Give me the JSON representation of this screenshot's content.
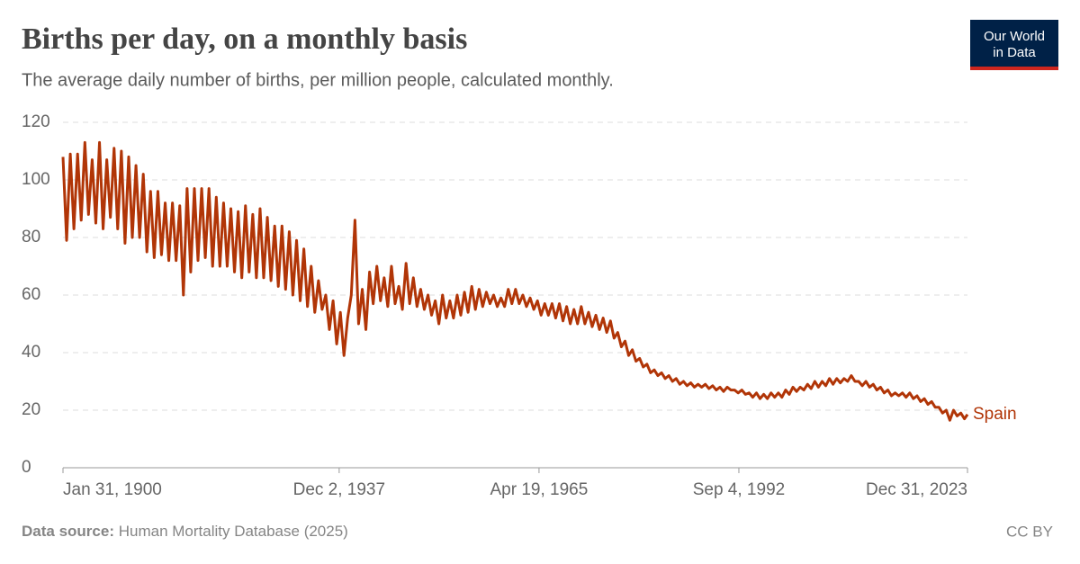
{
  "chart_data": {
    "type": "line",
    "title": "Births per day, on a monthly basis",
    "subtitle": "The average daily number of births, per million people, calculated monthly.",
    "x": [
      "1900-01-31",
      "1900-07-31",
      "1901-01-31",
      "1901-07-31",
      "1902-01-31",
      "1902-07-31",
      "1903-01-31",
      "1903-07-31",
      "1904-01-31",
      "1904-07-31",
      "1905-01-31",
      "1905-07-31",
      "1906-01-31",
      "1906-07-31",
      "1907-01-31",
      "1907-07-31",
      "1908-01-31",
      "1908-07-31",
      "1909-01-31",
      "1909-07-31",
      "1910-01-31",
      "1910-07-31",
      "1911-01-31",
      "1911-07-31",
      "1912-01-31",
      "1912-07-31",
      "1913-01-31",
      "1913-07-31",
      "1914-01-31",
      "1914-07-31",
      "1915-01-31",
      "1915-07-31",
      "1916-01-31",
      "1916-07-31",
      "1917-01-31",
      "1917-07-31",
      "1918-01-31",
      "1918-07-31",
      "1919-01-31",
      "1919-07-31",
      "1920-01-31",
      "1920-07-31",
      "1921-01-31",
      "1921-07-31",
      "1922-01-31",
      "1922-07-31",
      "1923-01-31",
      "1923-07-31",
      "1924-01-31",
      "1924-07-31",
      "1925-01-31",
      "1925-07-31",
      "1926-01-31",
      "1926-07-31",
      "1927-01-31",
      "1927-07-31",
      "1928-01-31",
      "1928-07-31",
      "1929-01-31",
      "1929-07-31",
      "1930-01-31",
      "1930-07-31",
      "1931-01-31",
      "1931-07-31",
      "1932-01-31",
      "1932-07-31",
      "1933-01-31",
      "1933-07-31",
      "1934-01-31",
      "1934-07-31",
      "1935-01-31",
      "1935-07-31",
      "1936-01-31",
      "1936-07-31",
      "1937-01-31",
      "1937-07-31",
      "1938-01-31",
      "1938-07-31",
      "1939-01-31",
      "1939-07-31",
      "1940-01-31",
      "1940-07-31",
      "1941-01-31",
      "1941-07-31",
      "1942-01-31",
      "1942-07-31",
      "1943-01-31",
      "1943-07-31",
      "1944-01-31",
      "1944-07-31",
      "1945-01-31",
      "1945-07-31",
      "1946-01-31",
      "1946-07-31",
      "1947-01-31",
      "1947-07-31",
      "1948-01-31",
      "1948-07-31",
      "1949-01-31",
      "1949-07-31",
      "1950-01-31",
      "1950-07-31",
      "1951-01-31",
      "1951-07-31",
      "1952-01-31",
      "1952-07-31",
      "1953-01-31",
      "1953-07-31",
      "1954-01-31",
      "1954-07-31",
      "1955-01-31",
      "1955-07-31",
      "1956-01-31",
      "1956-07-31",
      "1957-01-31",
      "1957-07-31",
      "1958-01-31",
      "1958-07-31",
      "1959-01-31",
      "1959-07-31",
      "1960-01-31",
      "1960-07-31",
      "1961-01-31",
      "1961-07-31",
      "1962-01-31",
      "1962-07-31",
      "1963-01-31",
      "1963-07-31",
      "1964-01-31",
      "1964-07-31",
      "1965-01-31",
      "1965-07-31",
      "1966-01-31",
      "1966-07-31",
      "1967-01-31",
      "1967-07-31",
      "1968-01-31",
      "1968-07-31",
      "1969-01-31",
      "1969-07-31",
      "1970-01-31",
      "1970-07-31",
      "1971-01-31",
      "1971-07-31",
      "1972-01-31",
      "1972-07-31",
      "1973-01-31",
      "1973-07-31",
      "1974-01-31",
      "1974-07-31",
      "1975-01-31",
      "1975-07-31",
      "1976-01-31",
      "1976-07-31",
      "1977-01-31",
      "1977-07-31",
      "1978-01-31",
      "1978-07-31",
      "1979-01-31",
      "1979-07-31",
      "1980-01-31",
      "1980-07-31",
      "1981-01-31",
      "1981-07-31",
      "1982-01-31",
      "1982-07-31",
      "1983-01-31",
      "1983-07-31",
      "1984-01-31",
      "1984-07-31",
      "1985-01-31",
      "1985-07-31",
      "1986-01-31",
      "1986-07-31",
      "1987-01-31",
      "1987-07-31",
      "1988-01-31",
      "1988-07-31",
      "1989-01-31",
      "1989-07-31",
      "1990-01-31",
      "1990-07-31",
      "1991-01-31",
      "1991-07-31",
      "1992-01-31",
      "1992-07-31",
      "1993-01-31",
      "1993-07-31",
      "1994-01-31",
      "1994-07-31",
      "1995-01-31",
      "1995-07-31",
      "1996-01-31",
      "1996-07-31",
      "1997-01-31",
      "1997-07-31",
      "1998-01-31",
      "1998-07-31",
      "1999-01-31",
      "1999-07-31",
      "2000-01-31",
      "2000-07-31",
      "2001-01-31",
      "2001-07-31",
      "2002-01-31",
      "2002-07-31",
      "2003-01-31",
      "2003-07-31",
      "2004-01-31",
      "2004-07-31",
      "2005-01-31",
      "2005-07-31",
      "2006-01-31",
      "2006-07-31",
      "2007-01-31",
      "2007-07-31",
      "2008-01-31",
      "2008-07-31",
      "2009-01-31",
      "2009-07-31",
      "2010-01-31",
      "2010-07-31",
      "2011-01-31",
      "2011-07-31",
      "2012-01-31",
      "2012-07-31",
      "2013-01-31",
      "2013-07-31",
      "2014-01-31",
      "2014-07-31",
      "2015-01-31",
      "2015-07-31",
      "2016-01-31",
      "2016-07-31",
      "2017-01-31",
      "2017-07-31",
      "2018-01-31",
      "2018-07-31",
      "2019-01-31",
      "2019-07-31",
      "2020-01-31",
      "2020-07-31",
      "2021-01-31",
      "2021-07-31",
      "2022-01-31",
      "2022-07-31",
      "2023-01-31",
      "2023-07-31",
      "2023-12-31"
    ],
    "series": [
      {
        "name": "Spain",
        "color": "#b13507",
        "values": [
          108,
          79,
          109,
          83,
          109,
          86,
          113,
          88,
          107,
          85,
          113,
          83,
          107,
          87,
          111,
          83,
          110,
          78,
          108,
          80,
          105,
          80,
          102,
          75,
          96,
          73,
          96,
          74,
          92,
          72,
          92,
          72,
          91,
          60,
          97,
          68,
          97,
          72,
          97,
          73,
          97,
          70,
          94,
          70,
          92,
          70,
          90,
          68,
          89,
          66,
          91,
          68,
          88,
          66,
          90,
          66,
          87,
          65,
          84,
          63,
          84,
          62,
          82,
          60,
          79,
          58,
          76,
          56,
          70,
          54,
          65,
          55,
          60,
          48,
          58,
          43,
          54,
          39,
          52,
          60,
          86,
          50,
          62,
          48,
          68,
          57,
          70,
          58,
          66,
          56,
          70,
          57,
          63,
          55,
          71,
          57,
          66,
          56,
          62,
          55,
          60,
          53,
          58,
          50,
          60,
          52,
          58,
          52,
          60,
          53,
          61,
          54,
          63,
          55,
          62,
          56,
          61,
          57,
          60,
          56,
          59,
          56,
          62,
          57,
          62,
          57,
          60,
          56,
          59,
          55,
          58,
          53,
          57,
          53,
          57,
          52,
          57,
          51,
          56,
          50,
          55,
          50,
          56,
          50,
          54,
          49,
          53,
          48,
          52,
          47,
          51,
          45,
          47,
          42,
          44,
          39,
          41,
          37,
          38,
          35,
          36,
          33,
          34,
          32,
          33,
          31,
          32,
          30,
          31,
          29,
          30,
          28.5,
          29.5,
          28,
          29,
          28,
          29,
          27.5,
          28.5,
          27,
          28,
          26.5,
          28,
          27,
          27,
          26,
          27,
          25.5,
          26,
          24.5,
          26,
          24,
          25.5,
          24,
          26,
          24.5,
          26,
          24.5,
          27,
          25.5,
          28,
          26.5,
          28,
          27,
          29,
          27.5,
          30,
          28,
          30,
          28.5,
          31,
          29,
          31,
          29.5,
          31,
          30,
          32,
          30,
          30,
          28.5,
          30,
          28,
          29,
          27,
          28,
          26,
          27,
          25,
          26,
          25,
          26,
          24.5,
          26,
          24,
          25,
          23,
          24,
          22,
          23,
          21,
          21,
          19,
          20,
          16.5,
          20,
          18,
          19,
          17,
          18.5
        ]
      }
    ],
    "xlim": [
      "1900-01-31",
      "2023-12-31"
    ],
    "xticks": [
      {
        "value": "1900-01-31",
        "label": "Jan 31, 1900"
      },
      {
        "value": "1937-12-02",
        "label": "Dec 2, 1937"
      },
      {
        "value": "1965-04-19",
        "label": "Apr 19, 1965"
      },
      {
        "value": "1992-09-04",
        "label": "Sep 4, 1992"
      },
      {
        "value": "2023-12-31",
        "label": "Dec 31, 2023"
      }
    ],
    "ylim": [
      0,
      120
    ],
    "yticks": [
      0,
      20,
      40,
      60,
      80,
      100,
      120
    ],
    "grid": true
  },
  "logo": [
    "Our World",
    "in Data"
  ],
  "footer": {
    "source_label": "Data source:",
    "source": "Human Mortality Database (2025)",
    "license": "CC BY"
  }
}
